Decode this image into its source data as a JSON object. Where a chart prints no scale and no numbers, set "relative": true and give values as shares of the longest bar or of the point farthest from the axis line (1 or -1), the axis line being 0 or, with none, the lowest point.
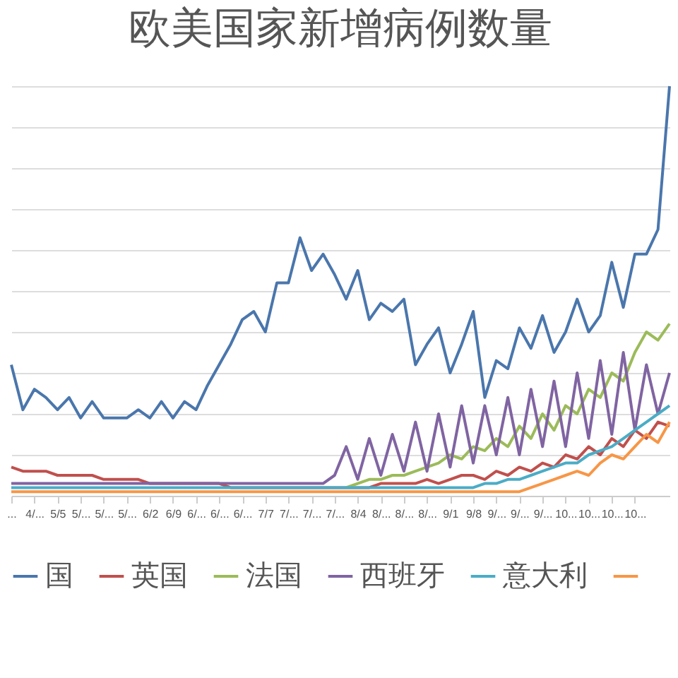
{
  "chart_data": {
    "type": "line",
    "title": "欧美国家新增病例数量",
    "relative": true,
    "grid": "y",
    "legend": "bottom",
    "marker": "none",
    "line_style": "solid",
    "categories": [
      "...",
      null,
      "4/...",
      null,
      "5/5",
      null,
      "5/...",
      null,
      "5/...",
      null,
      "5/...",
      null,
      "6/2",
      null,
      "6/9",
      null,
      "6/...",
      null,
      "6/...",
      null,
      "6/...",
      null,
      "7/7",
      null,
      "7/...",
      null,
      "7/...",
      null,
      "7/...",
      null,
      "8/4",
      null,
      "8/...",
      null,
      "8/...",
      null,
      "8/...",
      null,
      "9/1",
      null,
      "9/8",
      null,
      "9/...",
      null,
      "9/...",
      null,
      "9/...",
      null,
      "10...",
      null,
      "10...",
      null,
      "10...",
      null,
      "10...",
      null,
      null,
      null
    ],
    "series": [
      {
        "name": "国",
        "color": "#4a76ac",
        "values": [
          0.32,
          0.21,
          0.26,
          0.24,
          0.21,
          0.24,
          0.19,
          0.23,
          0.19,
          0.19,
          0.19,
          0.21,
          0.19,
          0.23,
          0.19,
          0.23,
          0.21,
          0.27,
          0.32,
          0.37,
          0.43,
          0.45,
          0.4,
          0.52,
          0.52,
          0.63,
          0.55,
          0.59,
          0.54,
          0.48,
          0.55,
          0.43,
          0.47,
          0.45,
          0.48,
          0.32,
          0.37,
          0.41,
          0.3,
          0.37,
          0.45,
          0.24,
          0.33,
          0.31,
          0.41,
          0.36,
          0.44,
          0.35,
          0.4,
          0.48,
          0.4,
          0.44,
          0.57,
          0.46,
          0.59,
          0.59,
          0.65,
          1
        ]
      },
      {
        "name": "英国",
        "color": "#c0504d",
        "values": [
          0.07,
          0.06,
          0.06,
          0.06,
          0.05,
          0.05,
          0.05,
          0.05,
          0.04,
          0.04,
          0.04,
          0.04,
          0.03,
          0.03,
          0.03,
          0.03,
          0.03,
          0.03,
          0.03,
          0.02,
          0.02,
          0.02,
          0.02,
          0.02,
          0.02,
          0.02,
          0.02,
          0.02,
          0.02,
          0.02,
          0.02,
          0.02,
          0.03,
          0.03,
          0.03,
          0.03,
          0.04,
          0.03,
          0.04,
          0.05,
          0.05,
          0.04,
          0.06,
          0.05,
          0.07,
          0.06,
          0.08,
          0.07,
          0.1,
          0.09,
          0.12,
          0.1,
          0.14,
          0.12,
          0.16,
          0.14,
          0.18,
          0.17
        ]
      },
      {
        "name": "法国",
        "color": "#9bbb59",
        "values": [
          null,
          null,
          null,
          null,
          null,
          null,
          null,
          null,
          null,
          null,
          null,
          null,
          null,
          null,
          null,
          null,
          null,
          null,
          null,
          null,
          null,
          null,
          null,
          null,
          null,
          null,
          null,
          null,
          null,
          0.02,
          0.03,
          0.04,
          0.04,
          0.05,
          0.05,
          0.06,
          0.07,
          0.08,
          0.1,
          0.09,
          0.12,
          0.11,
          0.14,
          0.12,
          0.17,
          0.14,
          0.2,
          0.16,
          0.22,
          0.2,
          0.26,
          0.24,
          0.3,
          0.28,
          0.35,
          0.4,
          0.38,
          0.42
        ]
      },
      {
        "name": "西班牙",
        "color": "#8064a2",
        "values": [
          0.03,
          0.03,
          0.03,
          0.03,
          0.03,
          0.03,
          0.03,
          0.03,
          0.03,
          0.03,
          0.03,
          0.03,
          0.03,
          0.03,
          0.03,
          0.03,
          0.03,
          0.03,
          0.03,
          0.03,
          0.03,
          0.03,
          0.03,
          0.03,
          0.03,
          0.03,
          0.03,
          0.03,
          0.05,
          0.12,
          0.04,
          0.14,
          0.05,
          0.15,
          0.06,
          0.18,
          0.06,
          0.2,
          0.07,
          0.22,
          0.08,
          0.22,
          0.1,
          0.24,
          0.1,
          0.26,
          0.12,
          0.28,
          0.12,
          0.3,
          0.14,
          0.33,
          0.15,
          0.35,
          0.16,
          0.32,
          0.2,
          0.3
        ]
      },
      {
        "name": "意大利",
        "color": "#4bacc6",
        "values": [
          0.02,
          0.02,
          0.02,
          0.02,
          0.02,
          0.02,
          0.02,
          0.02,
          0.02,
          0.02,
          0.02,
          0.02,
          0.02,
          0.02,
          0.02,
          0.02,
          0.02,
          0.02,
          0.02,
          0.02,
          0.02,
          0.02,
          0.02,
          0.02,
          0.02,
          0.02,
          0.02,
          0.02,
          0.02,
          0.02,
          0.02,
          0.02,
          0.02,
          0.02,
          0.02,
          0.02,
          0.02,
          0.02,
          0.02,
          0.02,
          0.02,
          0.03,
          0.03,
          0.04,
          0.04,
          0.05,
          0.06,
          0.07,
          0.08,
          0.08,
          0.1,
          0.11,
          0.12,
          0.14,
          0.16,
          0.18,
          0.2,
          0.22
        ]
      },
      {
        "color": "#f79646",
        "values": [
          0.01,
          0.01,
          0.01,
          0.01,
          0.01,
          0.01,
          0.01,
          0.01,
          0.01,
          0.01,
          0.01,
          0.01,
          0.01,
          0.01,
          0.01,
          0.01,
          0.01,
          0.01,
          0.01,
          0.01,
          0.01,
          0.01,
          0.01,
          0.01,
          0.01,
          0.01,
          0.01,
          0.01,
          0.01,
          0.01,
          0.01,
          0.01,
          0.01,
          0.01,
          0.01,
          0.01,
          0.01,
          0.01,
          0.01,
          0.01,
          0.01,
          0.01,
          0.01,
          0.01,
          0.01,
          0.02,
          0.03,
          0.04,
          0.05,
          0.06,
          0.05,
          0.08,
          0.1,
          0.09,
          0.12,
          0.15,
          0.13,
          0.18
        ]
      }
    ]
  }
}
